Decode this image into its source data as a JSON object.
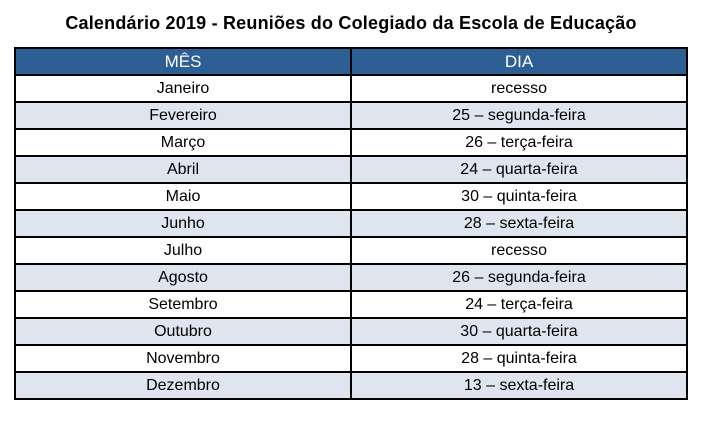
{
  "title": "Calendário 2019 - Reuniões do Colegiado da Escola de Educação",
  "table": {
    "headers": [
      "MÊS",
      "DIA"
    ],
    "rows": [
      {
        "mes": "Janeiro",
        "dia": "recesso"
      },
      {
        "mes": "Fevereiro",
        "dia": "25 – segunda-feira"
      },
      {
        "mes": "Março",
        "dia": "26 – terça-feira"
      },
      {
        "mes": "Abril",
        "dia": "24 – quarta-feira"
      },
      {
        "mes": "Maio",
        "dia": "30 – quinta-feira"
      },
      {
        "mes": "Junho",
        "dia": "28 – sexta-feira"
      },
      {
        "mes": "Julho",
        "dia": "recesso"
      },
      {
        "mes": "Agosto",
        "dia": "26 – segunda-feira"
      },
      {
        "mes": "Setembro",
        "dia": "24 – terça-feira"
      },
      {
        "mes": "Outubro",
        "dia": "30 – quarta-feira"
      },
      {
        "mes": "Novembro",
        "dia": "28 – quinta-feira"
      },
      {
        "mes": "Dezembro",
        "dia": "13 – sexta-feira"
      }
    ]
  },
  "colors": {
    "header_bg": "#2D5F94",
    "header_text": "#FFFFFF",
    "row_bg": "#FFFFFF",
    "row_alt_bg": "#DEE5EF",
    "border": "#000000"
  }
}
